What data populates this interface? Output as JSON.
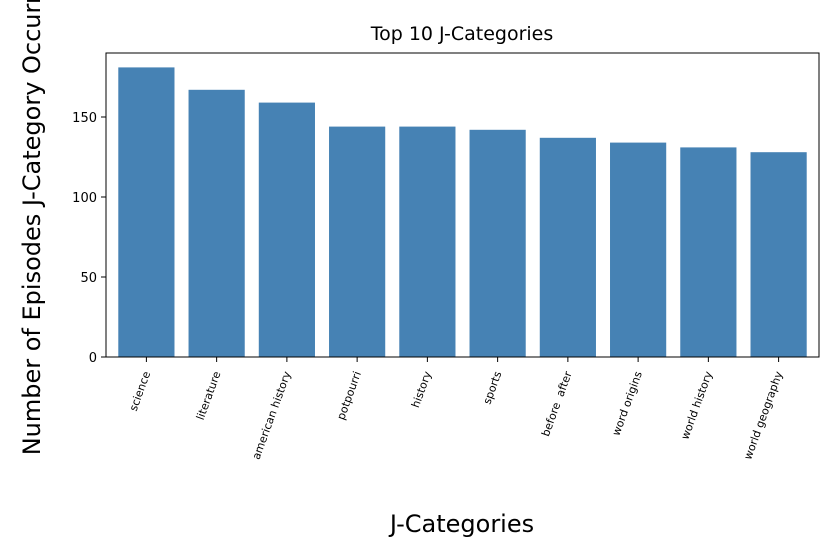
{
  "chart_data": {
    "type": "bar",
    "title": "Top 10 J-Categories",
    "xlabel": "J-Categories",
    "ylabel": "Number of Episodes J-Category Occurred",
    "categories": [
      "science",
      "literature",
      "american history",
      "potpourri",
      "history",
      "sports",
      "before  after",
      "word origins",
      "world history",
      "world geography"
    ],
    "values": [
      181,
      167,
      159,
      144,
      144,
      142,
      137,
      134,
      131,
      128
    ],
    "ylim": [
      0,
      190
    ],
    "yticks": [
      0,
      50,
      100,
      150
    ],
    "grid": false,
    "legend": "none",
    "bar_color": "#4682b4"
  }
}
